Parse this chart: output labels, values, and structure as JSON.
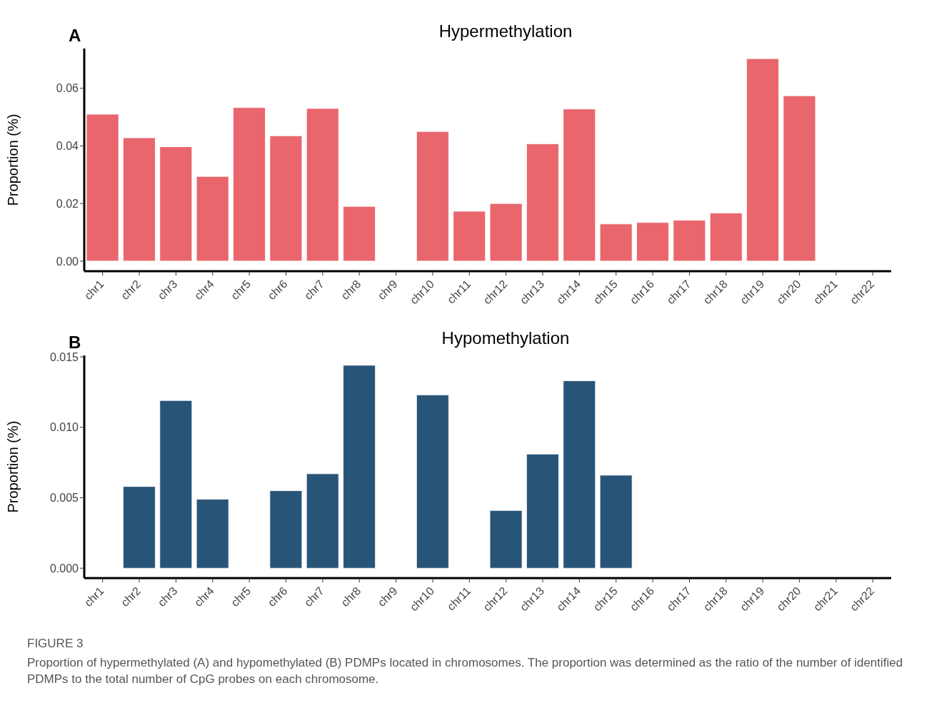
{
  "chart_data": [
    {
      "type": "bar",
      "title": "Hypermethylation",
      "ylabel": "Proportion (%)",
      "categories": [
        "chr1",
        "chr2",
        "chr3",
        "chr4",
        "chr5",
        "chr6",
        "chr7",
        "chr8",
        "chr9",
        "chr10",
        "chr11",
        "chr12",
        "chr13",
        "chr14",
        "chr15",
        "chr16",
        "chr17",
        "chr18",
        "chr19",
        "chr20",
        "chr21",
        "chr22"
      ],
      "series": [
        {
          "color": "#e8666c",
          "values": [
            0.051,
            0.0428,
            0.0397,
            0.0294,
            0.0533,
            0.0435,
            0.053,
            0.019,
            0,
            0.045,
            0.0173,
            0.02,
            0.0407,
            0.0528,
            0.0129,
            0.0134,
            0.0142,
            0.0167,
            0.0703,
            0.0574,
            0,
            0
          ]
        }
      ],
      "ylim": [
        -0.0035,
        0.0738
      ],
      "yticks": [
        {
          "value": 0,
          "label": "0.00"
        },
        {
          "value": 0.02,
          "label": "0.02"
        },
        {
          "value": 0.04,
          "label": "0.04"
        },
        {
          "value": 0.06,
          "label": "0.06"
        }
      ],
      "annotations": [
        "A"
      ]
    },
    {
      "type": "bar",
      "title": "Hypomethylation",
      "ylabel": "Proportion (%)",
      "categories": [
        "chr1",
        "chr2",
        "chr3",
        "chr4",
        "chr5",
        "chr6",
        "chr7",
        "chr8",
        "chr9",
        "chr10",
        "chr11",
        "chr12",
        "chr13",
        "chr14",
        "chr15",
        "chr16",
        "chr17",
        "chr18",
        "chr19",
        "chr20",
        "chr21",
        "chr22"
      ],
      "series": [
        {
          "color": "#285478",
          "values": [
            0,
            0.0058,
            0.0119,
            0.0049,
            0,
            0.0055,
            0.0067,
            0.0144,
            0,
            0.0123,
            0,
            0.0041,
            0.0081,
            0.0133,
            0.0066,
            0,
            0,
            0,
            0,
            0,
            0,
            0
          ]
        }
      ],
      "ylim": [
        -0.0007,
        0.0151
      ],
      "yticks": [
        {
          "value": 0,
          "label": "0.000"
        },
        {
          "value": 0.005,
          "label": "0.005"
        },
        {
          "value": 0.01,
          "label": "0.010"
        },
        {
          "value": 0.015,
          "label": "0.015"
        }
      ],
      "annotations": [
        "B",
        "FIGURE 3",
        "Proportion of hypermethylated (A) and hypomethylated (B) PDMPs located in chromosomes. The proportion was determined as the ratio of the number of identified PDMPs to the total number of CpG probes on each chromosome."
      ]
    }
  ]
}
